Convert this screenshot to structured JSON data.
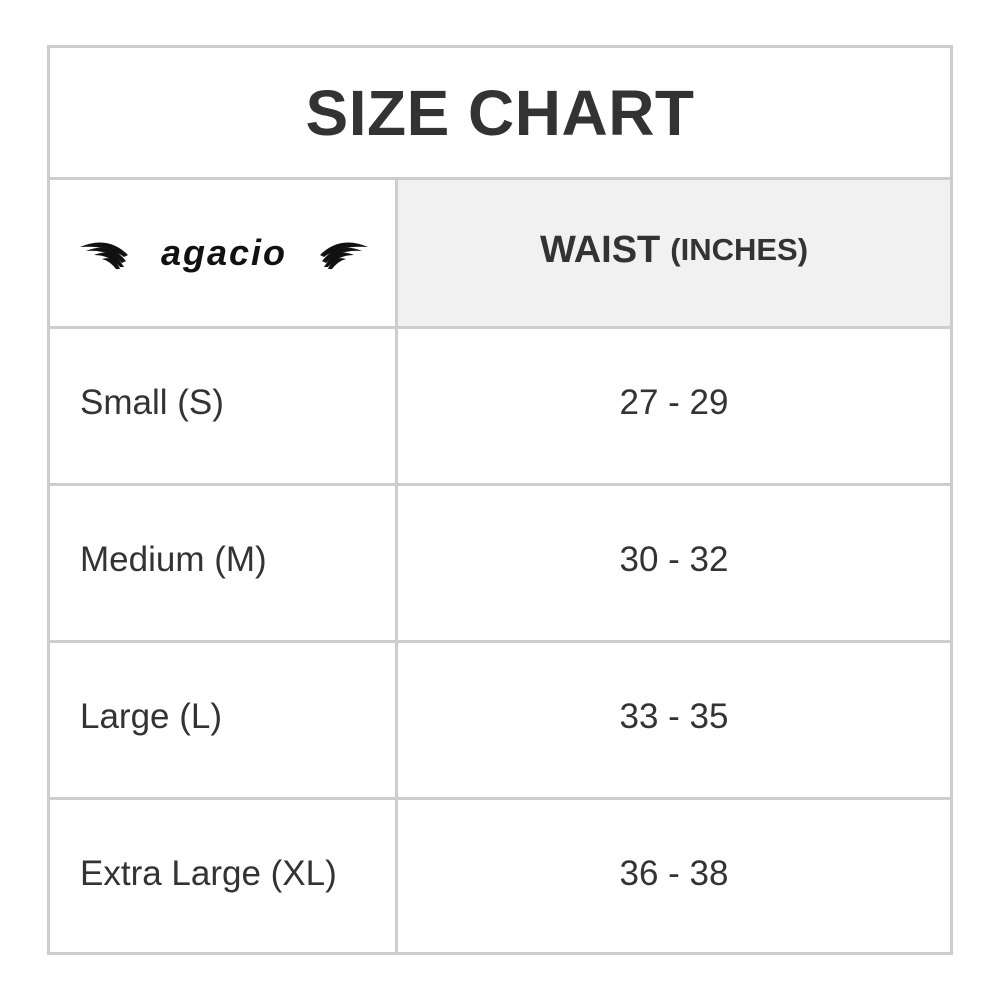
{
  "title": "SIZE CHART",
  "logo": {
    "text": "agacio"
  },
  "header": {
    "column_main": "WAIST",
    "column_unit": "(INCHES)"
  },
  "rows": [
    {
      "size": "Small (S)",
      "waist": "27 - 29"
    },
    {
      "size": "Medium (M)",
      "waist": "30 - 32"
    },
    {
      "size": "Large (L)",
      "waist": "33 - 35"
    },
    {
      "size": "Extra Large (XL)",
      "waist": "36 - 38"
    }
  ]
}
